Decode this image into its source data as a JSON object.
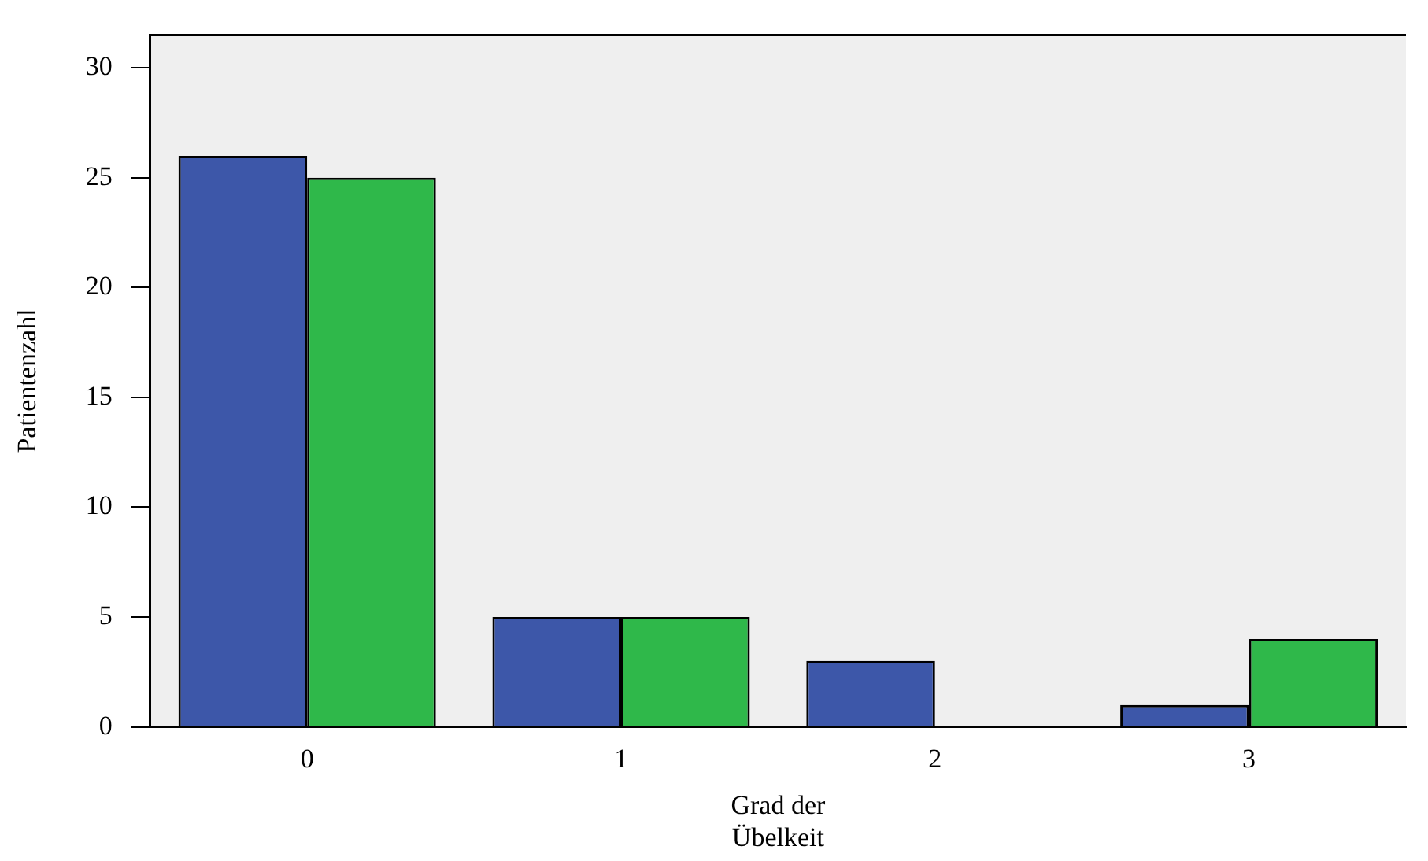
{
  "chart_data": {
    "type": "bar",
    "xlabel": "Grad der Übelkeit",
    "ylabel": "Patientenzahl",
    "categories": [
      "0",
      "1",
      "2",
      "3"
    ],
    "series": [
      {
        "color": "#3d57a9",
        "values": [
          26,
          5,
          3,
          1
        ]
      },
      {
        "color": "#2fb84a",
        "values": [
          25,
          5,
          0,
          4
        ]
      }
    ],
    "ylim": [
      0,
      31.5
    ],
    "yticks": [
      0,
      5,
      10,
      15,
      20,
      25,
      30
    ],
    "grid": false,
    "legend": false
  }
}
